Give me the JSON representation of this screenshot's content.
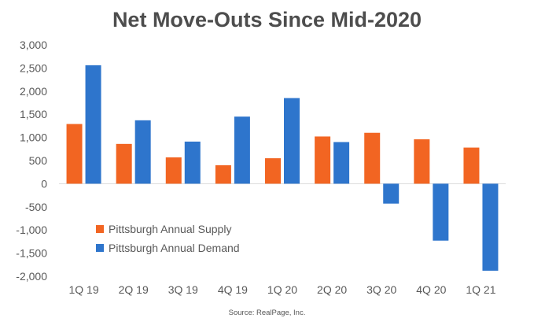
{
  "chart_data": {
    "type": "bar",
    "title": "Net Move-Outs Since Mid-2020",
    "source": "Source: RealPage, Inc.",
    "categories": [
      "1Q 19",
      "2Q 19",
      "3Q 19",
      "4Q 19",
      "1Q 20",
      "2Q 20",
      "3Q 20",
      "4Q 20",
      "1Q 21"
    ],
    "series": [
      {
        "name": "Pittsburgh Annual Supply",
        "color": "#f26522",
        "values": [
          1290,
          860,
          570,
          400,
          550,
          1020,
          1100,
          960,
          780
        ]
      },
      {
        "name": "Pittsburgh Annual Demand",
        "color": "#2e75cc",
        "values": [
          2560,
          1370,
          910,
          1450,
          1850,
          900,
          -430,
          -1230,
          -1880
        ]
      }
    ],
    "ylim": [
      -2000,
      3000
    ],
    "yticks": [
      3000,
      2500,
      2000,
      1500,
      1000,
      500,
      0,
      -500,
      -1000,
      -1500,
      -2000
    ],
    "ytick_labels": [
      "3,000",
      "2,500",
      "2,000",
      "1,500",
      "1,000",
      "500",
      "0",
      "-500",
      "-1,000",
      "-1,500",
      "-2,000"
    ],
    "grid": false,
    "legend_placement": "lower-left"
  }
}
